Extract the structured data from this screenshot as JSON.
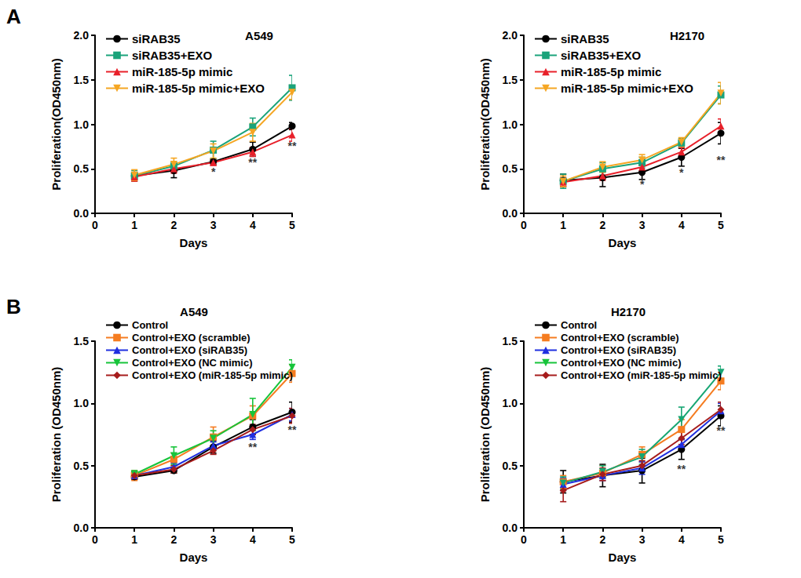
{
  "chart_data": [
    {
      "type": "line",
      "panel": "A",
      "title": "A549",
      "xlabel": "Days",
      "ylabel": "Proliferation(OD450nm)",
      "x": [
        1,
        2,
        3,
        4,
        5
      ],
      "xlim": [
        0,
        5
      ],
      "xticks": [
        0,
        1,
        2,
        3,
        4,
        5
      ],
      "ylim": [
        0,
        2
      ],
      "yticks": [
        {
          "value": 0,
          "label": "0.0"
        },
        0.5,
        {
          "value": 1,
          "label": "1.0"
        },
        1.5,
        {
          "value": 2,
          "label": "2.0"
        }
      ],
      "legend": "upper left",
      "series": [
        {
          "name": "siRAB35",
          "color": "#000000",
          "marker": "circle",
          "values": [
            0.42,
            0.48,
            0.58,
            0.72,
            0.98
          ],
          "errors": [
            0.04,
            0.08,
            0.03,
            0.08,
            0.04
          ]
        },
        {
          "name": "siRAB35+EXO",
          "color": "#1aa37a",
          "marker": "square",
          "values": [
            0.42,
            0.53,
            0.71,
            0.97,
            1.41
          ],
          "errors": [
            0.06,
            0.05,
            0.1,
            0.1,
            0.14
          ]
        },
        {
          "name": "miR-185-5p mimic",
          "color": "#e8202a",
          "marker": "triangle",
          "values": [
            0.41,
            0.5,
            0.57,
            0.69,
            0.88
          ],
          "errors": [
            0.05,
            0.05,
            0.03,
            0.05,
            0.07
          ]
        },
        {
          "name": "miR-185-5p mimic+EXO",
          "color": "#f5a623",
          "marker": "triangle-down",
          "values": [
            0.43,
            0.55,
            0.7,
            0.91,
            1.36
          ],
          "errors": [
            0.06,
            0.07,
            0.08,
            0.1,
            0.08
          ]
        }
      ],
      "annotations": [
        {
          "x": 3,
          "y": 0.47,
          "text": "*"
        },
        {
          "x": 4,
          "y": 0.57,
          "text": "**"
        },
        {
          "x": 5,
          "y": 0.76,
          "text": "**"
        }
      ]
    },
    {
      "type": "line",
      "title": "H2170",
      "xlabel": "Days",
      "ylabel": "Proliferation(OD450nm)",
      "x": [
        1,
        2,
        3,
        4,
        5
      ],
      "xlim": [
        0,
        5
      ],
      "xticks": [
        0,
        1,
        2,
        3,
        4,
        5
      ],
      "ylim": [
        0,
        2
      ],
      "yticks": [
        {
          "value": 0,
          "label": "0.0"
        },
        0.5,
        {
          "value": 1,
          "label": "1.0"
        },
        1.5,
        {
          "value": 2,
          "label": "2.0"
        }
      ],
      "legend": "upper left",
      "series": [
        {
          "name": "siRAB35",
          "color": "#000000",
          "marker": "circle",
          "values": [
            0.37,
            0.4,
            0.46,
            0.63,
            0.9
          ],
          "errors": [
            0.07,
            0.1,
            0.08,
            0.1,
            0.12
          ]
        },
        {
          "name": "siRAB35+EXO",
          "color": "#1aa37a",
          "marker": "square",
          "values": [
            0.36,
            0.5,
            0.57,
            0.79,
            1.33
          ],
          "errors": [
            0.08,
            0.07,
            0.06,
            0.05,
            0.1
          ]
        },
        {
          "name": "miR-185-5p mimic",
          "color": "#e8202a",
          "marker": "triangle",
          "values": [
            0.35,
            0.42,
            0.52,
            0.69,
            0.98
          ],
          "errors": [
            0.05,
            0.05,
            0.05,
            0.05,
            0.08
          ]
        },
        {
          "name": "miR-185-5p mimic+EXO",
          "color": "#f5a623",
          "marker": "triangle-down",
          "values": [
            0.36,
            0.52,
            0.6,
            0.8,
            1.35
          ],
          "errors": [
            0.06,
            0.06,
            0.06,
            0.05,
            0.12
          ]
        }
      ],
      "annotations": [
        {
          "x": 3,
          "y": 0.33,
          "text": "*"
        },
        {
          "x": 4,
          "y": 0.46,
          "text": "*"
        },
        {
          "x": 5,
          "y": 0.6,
          "text": "**"
        }
      ]
    },
    {
      "type": "line",
      "panel": "B",
      "title": "A549",
      "xlabel": "Days",
      "ylabel": "Proliferation (OD450nm)",
      "x": [
        1,
        2,
        3,
        4,
        5
      ],
      "xlim": [
        0,
        5
      ],
      "xticks": [
        0,
        1,
        2,
        3,
        4,
        5
      ],
      "ylim": [
        0,
        1.5
      ],
      "yticks": [
        {
          "value": 0,
          "label": "0.0"
        },
        0.5,
        {
          "value": 1,
          "label": "1.0"
        },
        1.5
      ],
      "legend": "upper left",
      "series": [
        {
          "name": "Control",
          "color": "#000000",
          "marker": "circle",
          "values": [
            0.41,
            0.46,
            0.65,
            0.81,
            0.93
          ],
          "errors": [
            0.02,
            0.02,
            0.05,
            0.06,
            0.08
          ]
        },
        {
          "name": "Control+EXO (scramble)",
          "color": "#f57c20",
          "marker": "square",
          "values": [
            0.42,
            0.55,
            0.73,
            0.9,
            1.24
          ],
          "errors": [
            0.04,
            0.05,
            0.08,
            0.08,
            0.07
          ]
        },
        {
          "name": "Control+EXO (siRAB35)",
          "color": "#1f2fe0",
          "marker": "triangle",
          "values": [
            0.42,
            0.49,
            0.66,
            0.75,
            0.91
          ],
          "errors": [
            0.03,
            0.03,
            0.03,
            0.04,
            0.05
          ]
        },
        {
          "name": "Control+EXO (NC mimic)",
          "color": "#17c43a",
          "marker": "triangle-down",
          "values": [
            0.43,
            0.58,
            0.72,
            0.91,
            1.29
          ],
          "errors": [
            0.03,
            0.07,
            0.06,
            0.13,
            0.06
          ]
        },
        {
          "name": "Control+EXO (miR-185-5p mimic)",
          "color": "#a61c1c",
          "marker": "diamond",
          "values": [
            0.42,
            0.47,
            0.62,
            0.79,
            0.9
          ],
          "errors": [
            0.03,
            0.03,
            0.03,
            0.04,
            0.06
          ]
        }
      ],
      "annotations": [
        {
          "x": 4,
          "y": 0.65,
          "text": "**"
        },
        {
          "x": 5,
          "y": 0.79,
          "text": "**"
        }
      ]
    },
    {
      "type": "line",
      "title": "H2170",
      "xlabel": "Days",
      "ylabel": "Proliferation (OD450nm)",
      "x": [
        1,
        2,
        3,
        4,
        5
      ],
      "xlim": [
        0,
        5
      ],
      "xticks": [
        0,
        1,
        2,
        3,
        4,
        5
      ],
      "ylim": [
        0,
        1.5
      ],
      "yticks": [
        {
          "value": 0,
          "label": "0.0"
        },
        0.5,
        {
          "value": 1,
          "label": "1.0"
        },
        1.5
      ],
      "legend": "upper left",
      "series": [
        {
          "name": "Control",
          "color": "#000000",
          "marker": "circle",
          "values": [
            0.37,
            0.42,
            0.46,
            0.63,
            0.9
          ],
          "errors": [
            0.09,
            0.09,
            0.1,
            0.08,
            0.08
          ]
        },
        {
          "name": "Control+EXO (scramble)",
          "color": "#f57c20",
          "marker": "square",
          "values": [
            0.37,
            0.44,
            0.59,
            0.79,
            1.18
          ],
          "errors": [
            0.05,
            0.06,
            0.06,
            0.08,
            0.07
          ]
        },
        {
          "name": "Control+EXO (siRAB35)",
          "color": "#1f2fe0",
          "marker": "triangle",
          "values": [
            0.35,
            0.42,
            0.48,
            0.67,
            0.94
          ],
          "errors": [
            0.05,
            0.04,
            0.05,
            0.04,
            0.06
          ]
        },
        {
          "name": "Control+EXO (NC mimic)",
          "color": "#17a673",
          "marker": "triangle-down",
          "values": [
            0.36,
            0.45,
            0.57,
            0.87,
            1.25
          ],
          "errors": [
            0.05,
            0.05,
            0.06,
            0.1,
            0.05
          ]
        },
        {
          "name": "Control+EXO (miR-185-5p mimic)",
          "color": "#a61c1c",
          "marker": "diamond",
          "values": [
            0.3,
            0.43,
            0.5,
            0.72,
            0.95
          ],
          "errors": [
            0.09,
            0.05,
            0.04,
            0.05,
            0.06
          ]
        }
      ],
      "annotations": [
        {
          "x": 4,
          "y": 0.47,
          "text": "**"
        },
        {
          "x": 5,
          "y": 0.78,
          "text": "**"
        }
      ]
    }
  ]
}
